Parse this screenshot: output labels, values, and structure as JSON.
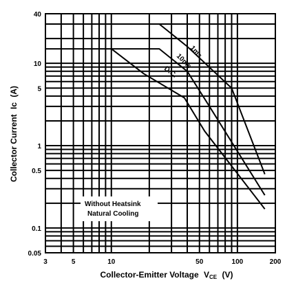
{
  "chart_data": {
    "type": "line",
    "xlabel": "Collector-Emitter Voltage",
    "xlabel_symbol": "V",
    "xlabel_subscript": "CE",
    "xlabel_unit": "(V)",
    "ylabel": "Collector Current",
    "ylabel_symbol": "Ic",
    "ylabel_unit": "(A)",
    "x_scale": "log",
    "y_scale": "log",
    "xlim": [
      3,
      200
    ],
    "ylim": [
      0.05,
      40
    ],
    "x_ticks": [
      3,
      5,
      10,
      50,
      100,
      200
    ],
    "x_tick_labels": [
      "3",
      "5",
      "10",
      "50",
      "100",
      "200"
    ],
    "y_ticks": [
      0.05,
      0.1,
      0.5,
      1,
      5,
      10,
      40
    ],
    "y_tick_labels": [
      "0.05",
      "0.1",
      "0.5",
      "1",
      "5",
      "10",
      "40"
    ],
    "grid": true,
    "series": [
      {
        "name": "1ms",
        "points": [
          [
            3,
            30
          ],
          [
            24,
            30
          ],
          [
            40,
            16
          ],
          [
            90,
            5
          ],
          [
            165,
            0.45
          ]
        ]
      },
      {
        "name": "10ms",
        "points": [
          [
            3,
            15
          ],
          [
            24,
            15
          ],
          [
            40,
            8
          ],
          [
            60,
            3
          ],
          [
            165,
            0.25
          ]
        ]
      },
      {
        "name": "D.C.",
        "points": [
          [
            10,
            15
          ],
          [
            18,
            7.5
          ],
          [
            38,
            3.8
          ],
          [
            55,
            1.5
          ],
          [
            165,
            0.17
          ]
        ]
      }
    ],
    "annotations": [
      "Without Heatsink",
      "Natural Cooling"
    ]
  }
}
